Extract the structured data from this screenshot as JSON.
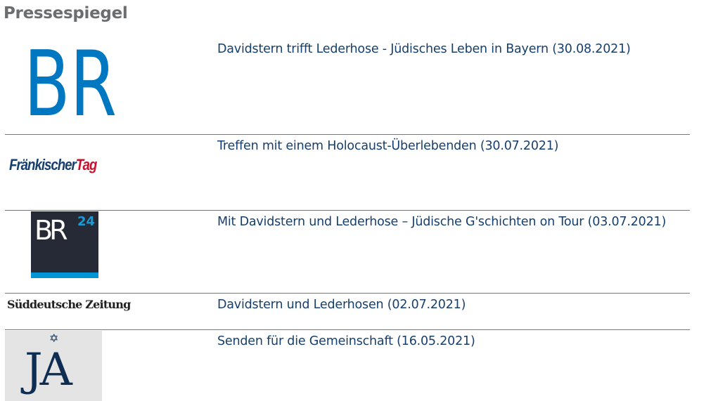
{
  "page": {
    "title": "Pressespiegel"
  },
  "colors": {
    "link": "#163f6e",
    "br_blue": "#0078c1",
    "br24_dark": "#262a36",
    "ft_red": "#c8102e",
    "ja_navy": "#0e2d52"
  },
  "items": [
    {
      "source": "BR",
      "logo_text": "BR",
      "title": "Davidstern trifft Lederhose - Jüdisches Leben in Bayern (30.08.2021)"
    },
    {
      "source": "Fränkischer Tag",
      "logo_text_1": "Fränkischer",
      "logo_text_2": "Tag",
      "title": "Treffen mit einem Holocaust-Überlebenden (30.07.2021)"
    },
    {
      "source": "BR24",
      "logo_text": "BR",
      "logo_sup": "24",
      "title": "Mit Davidstern und Lederhose – Jüdische G'schichten on Tour (03.07.2021)"
    },
    {
      "source": "Süddeutsche Zeitung",
      "logo_text": "Süddeutsche Zeitung",
      "title": "Davidstern und Lederhosen (02.07.2021)"
    },
    {
      "source": "Jüdische Allgemeine",
      "logo_text": "JA",
      "logo_star": "✡",
      "title": "Senden für die Gemeinschaft (16.05.2021)"
    }
  ]
}
